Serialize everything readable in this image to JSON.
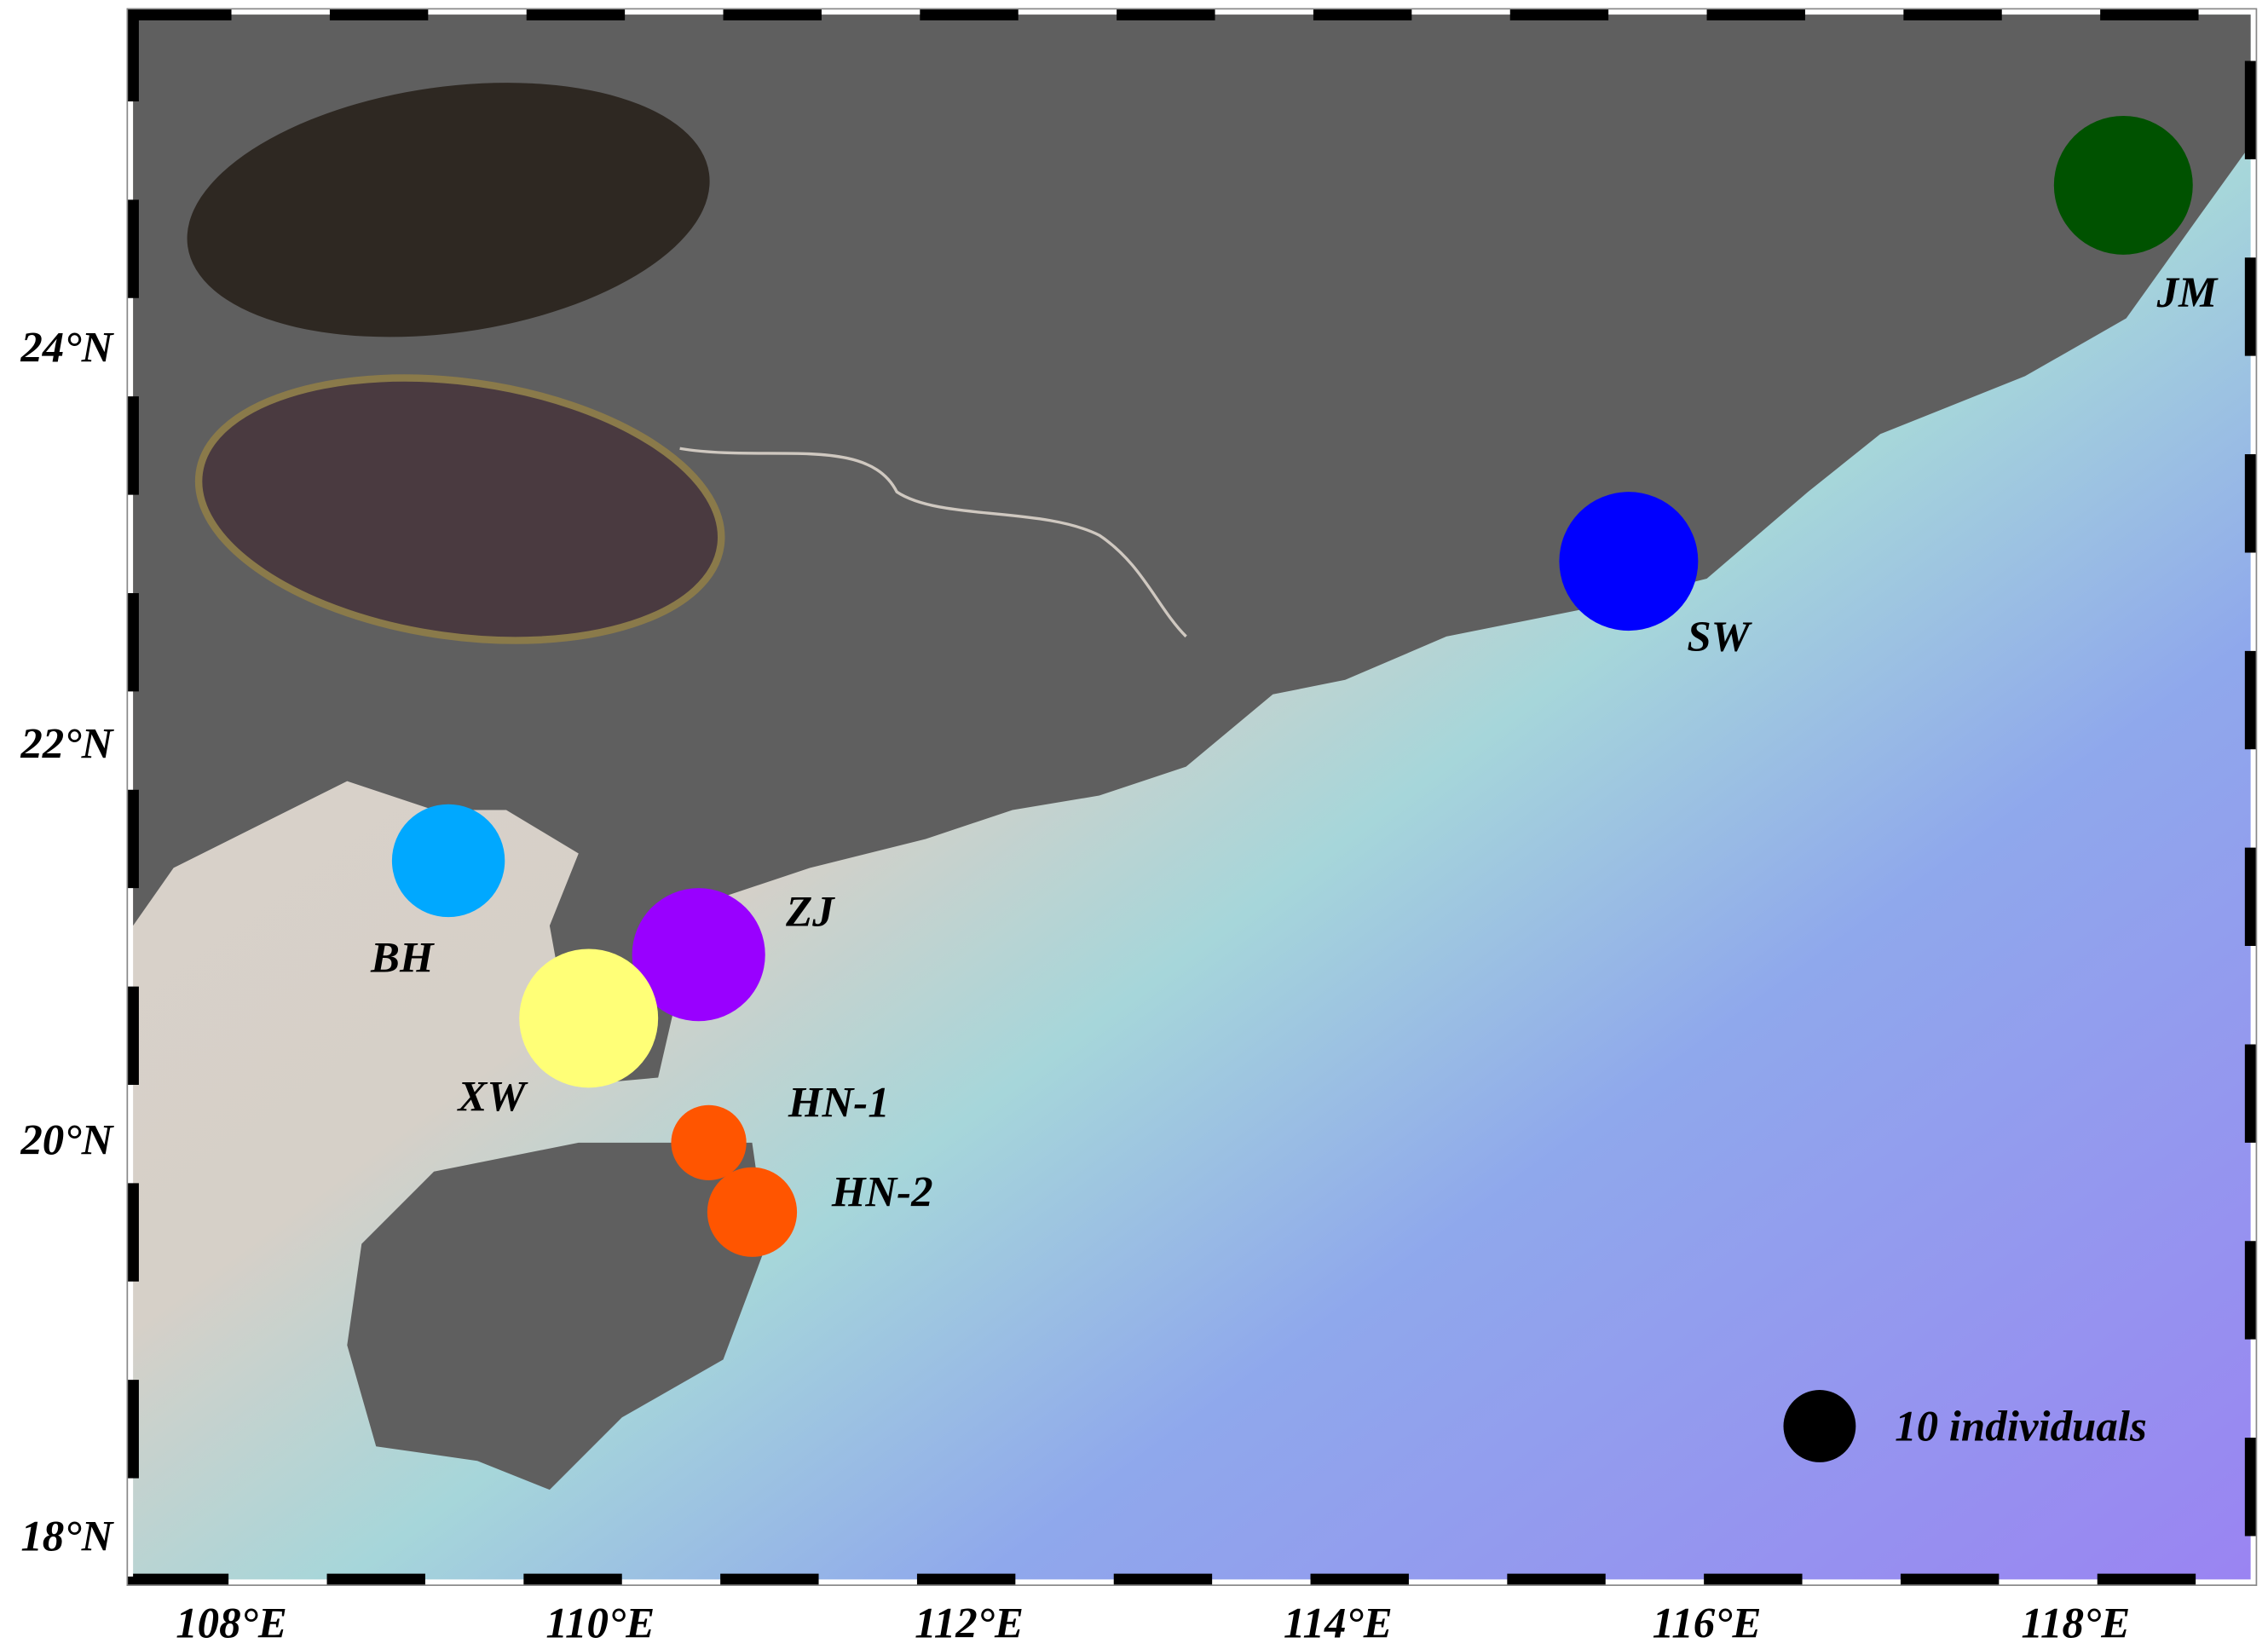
{
  "map": {
    "x_axis_labels": [
      "108°E",
      "110°E",
      "112°E",
      "114°E",
      "116°E",
      "118°E"
    ],
    "y_axis_labels": [
      "24°N",
      "22°N",
      "20°N",
      "18°N"
    ],
    "sites": [
      "JM",
      "SW",
      "BH",
      "ZJ",
      "XW",
      "HN-1",
      "HN-2"
    ],
    "legend": "10 individuals"
  }
}
